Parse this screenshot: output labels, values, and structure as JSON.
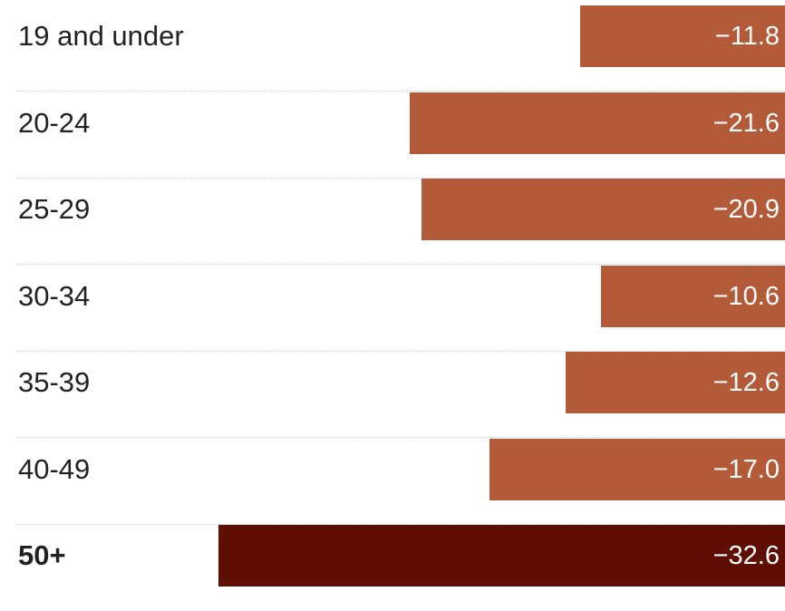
{
  "chart_data": {
    "type": "bar",
    "orientation": "horizontal",
    "categories": [
      "19 and under",
      "20-24",
      "25-29",
      "30-34",
      "35-39",
      "40-49",
      "50+"
    ],
    "values": [
      -11.8,
      -21.6,
      -20.9,
      -10.6,
      -12.6,
      -17.0,
      -32.6
    ],
    "value_labels": [
      "−11.8",
      "−21.6",
      "−20.9",
      "−10.6",
      "−12.6",
      "−17.0",
      "−32.6"
    ],
    "highlight_category": "50+",
    "title": "",
    "xlabel": "",
    "ylabel": "",
    "xlim": [
      -32.6,
      0
    ],
    "grid": false,
    "legend": "none",
    "colors": {
      "bar": "#b35a39",
      "highlight": "#5e0e02"
    }
  }
}
